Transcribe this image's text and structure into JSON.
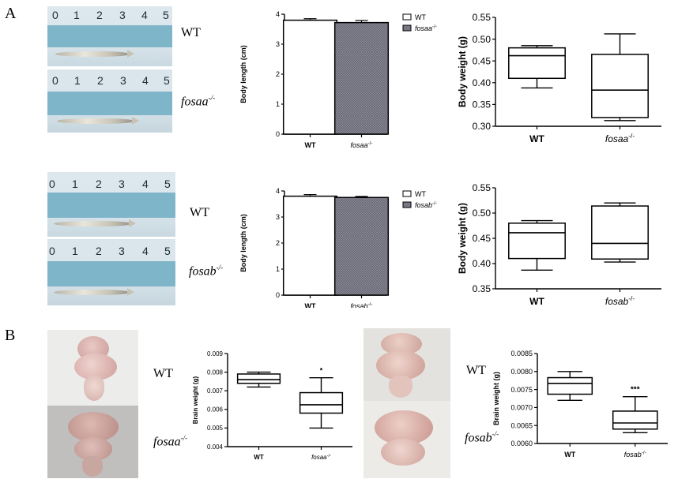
{
  "panel_labels": {
    "a": "A",
    "b": "B"
  },
  "ruler_numbers": [
    "0",
    "1",
    "2",
    "3",
    "4",
    "5"
  ],
  "genotypes": {
    "wt": "WT",
    "fosaa": "fosaa",
    "fosab": "fosab",
    "ko_sup": "-/-"
  },
  "colors": {
    "wt_fill": "#ffffff",
    "mutant_fill": "#8f8f9c",
    "ruler": "#7fb5c9"
  },
  "chart_data": [
    {
      "id": "fosaa-length",
      "type": "bar",
      "categories": [
        "WT",
        "fosaa-/-"
      ],
      "values": [
        3.8,
        3.72
      ],
      "errors": [
        0.05,
        0.07
      ],
      "ylabel": "Body length (cm)",
      "ylim": [
        0,
        4
      ],
      "yticks": [
        "0",
        "1",
        "2",
        "3",
        "4"
      ],
      "legend": [
        "WT",
        "fosaa-/-"
      ],
      "legend_position": "top-right"
    },
    {
      "id": "fosaa-weight",
      "type": "box",
      "categories": [
        "WT",
        "fosaa-/-"
      ],
      "boxes": [
        {
          "min": 0.388,
          "q1": 0.41,
          "median": 0.462,
          "q3": 0.48,
          "max": 0.485
        },
        {
          "min": 0.313,
          "q1": 0.32,
          "median": 0.383,
          "q3": 0.465,
          "max": 0.512
        }
      ],
      "ylabel": "Body weight (g)",
      "ylim": [
        0.3,
        0.55
      ],
      "yticks": [
        "0.30",
        "0.35",
        "0.40",
        "0.45",
        "0.50",
        "0.55"
      ]
    },
    {
      "id": "fosab-length",
      "type": "bar",
      "categories": [
        "WT",
        "fosab-/-"
      ],
      "values": [
        3.8,
        3.75
      ],
      "errors": [
        0.06,
        0.04
      ],
      "ylabel": "Body length (cm)",
      "ylim": [
        0,
        4
      ],
      "yticks": [
        "0",
        "1",
        "2",
        "3",
        "4"
      ],
      "legend": [
        "WT",
        "fosab-/-"
      ],
      "legend_position": "top-right"
    },
    {
      "id": "fosab-weight",
      "type": "box",
      "categories": [
        "WT",
        "fosab-/-"
      ],
      "boxes": [
        {
          "min": 0.387,
          "q1": 0.41,
          "median": 0.461,
          "q3": 0.48,
          "max": 0.485
        },
        {
          "min": 0.403,
          "q1": 0.409,
          "median": 0.44,
          "q3": 0.514,
          "max": 0.52
        }
      ],
      "ylabel": "Body weight (g)",
      "ylim": [
        0.35,
        0.55
      ],
      "yticks": [
        "0.35",
        "0.40",
        "0.45",
        "0.50",
        "0.55"
      ]
    },
    {
      "id": "fosaa-brain",
      "type": "box",
      "categories": [
        "WT",
        "fosaa-/-"
      ],
      "boxes": [
        {
          "min": 0.0072,
          "q1": 0.0074,
          "median": 0.0076,
          "q3": 0.0079,
          "max": 0.008
        },
        {
          "min": 0.005,
          "q1": 0.0058,
          "median": 0.00625,
          "q3": 0.0069,
          "max": 0.0077
        }
      ],
      "significance": [
        "",
        "*"
      ],
      "ylabel": "Brain weight (g)",
      "ylim": [
        0.004,
        0.009
      ],
      "yticks": [
        "0.004",
        "0.005",
        "0.006",
        "0.007",
        "0.008",
        "0.009"
      ]
    },
    {
      "id": "fosab-brain",
      "type": "box",
      "categories": [
        "WT",
        "fosab-/-"
      ],
      "boxes": [
        {
          "min": 0.0072,
          "q1": 0.00737,
          "median": 0.00767,
          "q3": 0.00783,
          "max": 0.008
        },
        {
          "min": 0.0063,
          "q1": 0.0064,
          "median": 0.00657,
          "q3": 0.0069,
          "max": 0.0073
        }
      ],
      "significance": [
        "",
        "***"
      ],
      "ylabel": "Brain weight (g)",
      "ylim": [
        0.006,
        0.0085
      ],
      "yticks": [
        "0.0060",
        "0.0065",
        "0.0070",
        "0.0075",
        "0.0080",
        "0.0085"
      ]
    }
  ]
}
